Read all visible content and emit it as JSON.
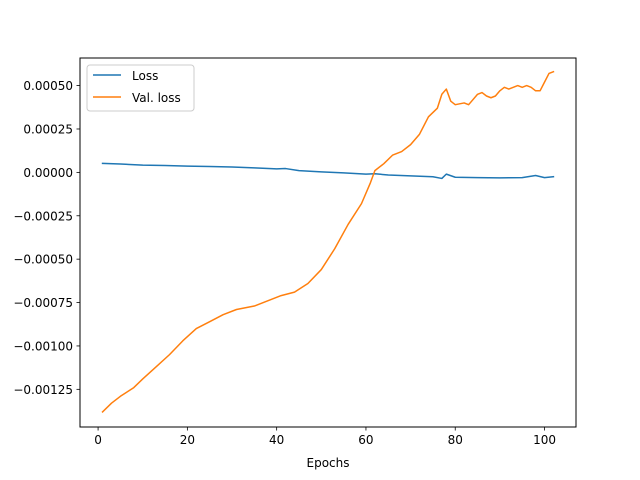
{
  "chart_data": {
    "type": "line",
    "title": "",
    "xlabel": "Epochs",
    "ylabel": "",
    "xlim": [
      -4.05,
      107.05
    ],
    "ylim": [
      -0.001467,
      0.000659
    ],
    "xticks": [
      0,
      20,
      40,
      60,
      80,
      100
    ],
    "xtick_labels": [
      "0",
      "20",
      "40",
      "60",
      "80",
      "100"
    ],
    "yticks": [
      -0.00125,
      -0.001,
      -0.00075,
      -0.0005,
      -0.00025,
      0,
      0.00025,
      0.0005
    ],
    "ytick_labels": [
      "−0.00125",
      "−0.00100",
      "−0.00075",
      "−0.00050",
      "−0.00025",
      "0.00000",
      "0.00025",
      "0.00050"
    ],
    "grid": false,
    "legend_position": "top-left",
    "series": [
      {
        "name": "Loss",
        "color": "#1f77b4",
        "x": [
          1,
          5,
          10,
          15,
          20,
          25,
          30,
          35,
          40,
          42,
          45,
          50,
          55,
          60,
          62,
          65,
          70,
          75,
          77,
          78,
          80,
          85,
          90,
          95,
          98,
          100,
          102
        ],
        "y": [
          5.2e-05,
          4.8e-05,
          4.2e-05,
          4e-05,
          3.6e-05,
          3.4e-05,
          3.1e-05,
          2.6e-05,
          2e-05,
          2.2e-05,
          1e-05,
          3e-06,
          -3e-06,
          -1e-05,
          -8e-06,
          -1.5e-05,
          -2e-05,
          -2.5e-05,
          -3.5e-05,
          -1e-05,
          -2.8e-05,
          -3e-05,
          -3.2e-05,
          -3e-05,
          -1.8e-05,
          -3e-05,
          -2.5e-05
        ]
      },
      {
        "name": "Val. loss",
        "color": "#ff7f0e",
        "x": [
          1,
          3,
          5,
          8,
          10,
          13,
          16,
          19,
          22,
          25,
          28,
          31,
          35,
          38,
          41,
          44,
          47,
          50,
          53,
          56,
          59,
          61,
          62,
          64,
          66,
          68,
          70,
          72,
          74,
          76,
          77,
          78,
          79,
          80,
          82,
          83,
          85,
          86,
          87,
          88,
          89,
          90,
          91,
          92,
          94,
          95,
          96,
          97,
          98,
          99,
          100,
          101,
          102
        ],
        "y": [
          -0.00138,
          -0.00133,
          -0.00129,
          -0.00124,
          -0.00119,
          -0.00112,
          -0.00105,
          -0.00097,
          -0.0009,
          -0.00086,
          -0.00082,
          -0.00079,
          -0.00077,
          -0.00074,
          -0.00071,
          -0.00069,
          -0.00064,
          -0.00056,
          -0.00044,
          -0.0003,
          -0.00018,
          -6e-05,
          1e-05,
          5e-05,
          0.0001,
          0.00012,
          0.00016,
          0.00022,
          0.00032,
          0.00037,
          0.00045,
          0.00048,
          0.00041,
          0.00039,
          0.0004,
          0.00039,
          0.00045,
          0.00046,
          0.00044,
          0.00043,
          0.00044,
          0.00047,
          0.00049,
          0.00048,
          0.0005,
          0.00049,
          0.0005,
          0.00049,
          0.00047,
          0.00047,
          0.00052,
          0.00057,
          0.00058
        ]
      }
    ]
  }
}
